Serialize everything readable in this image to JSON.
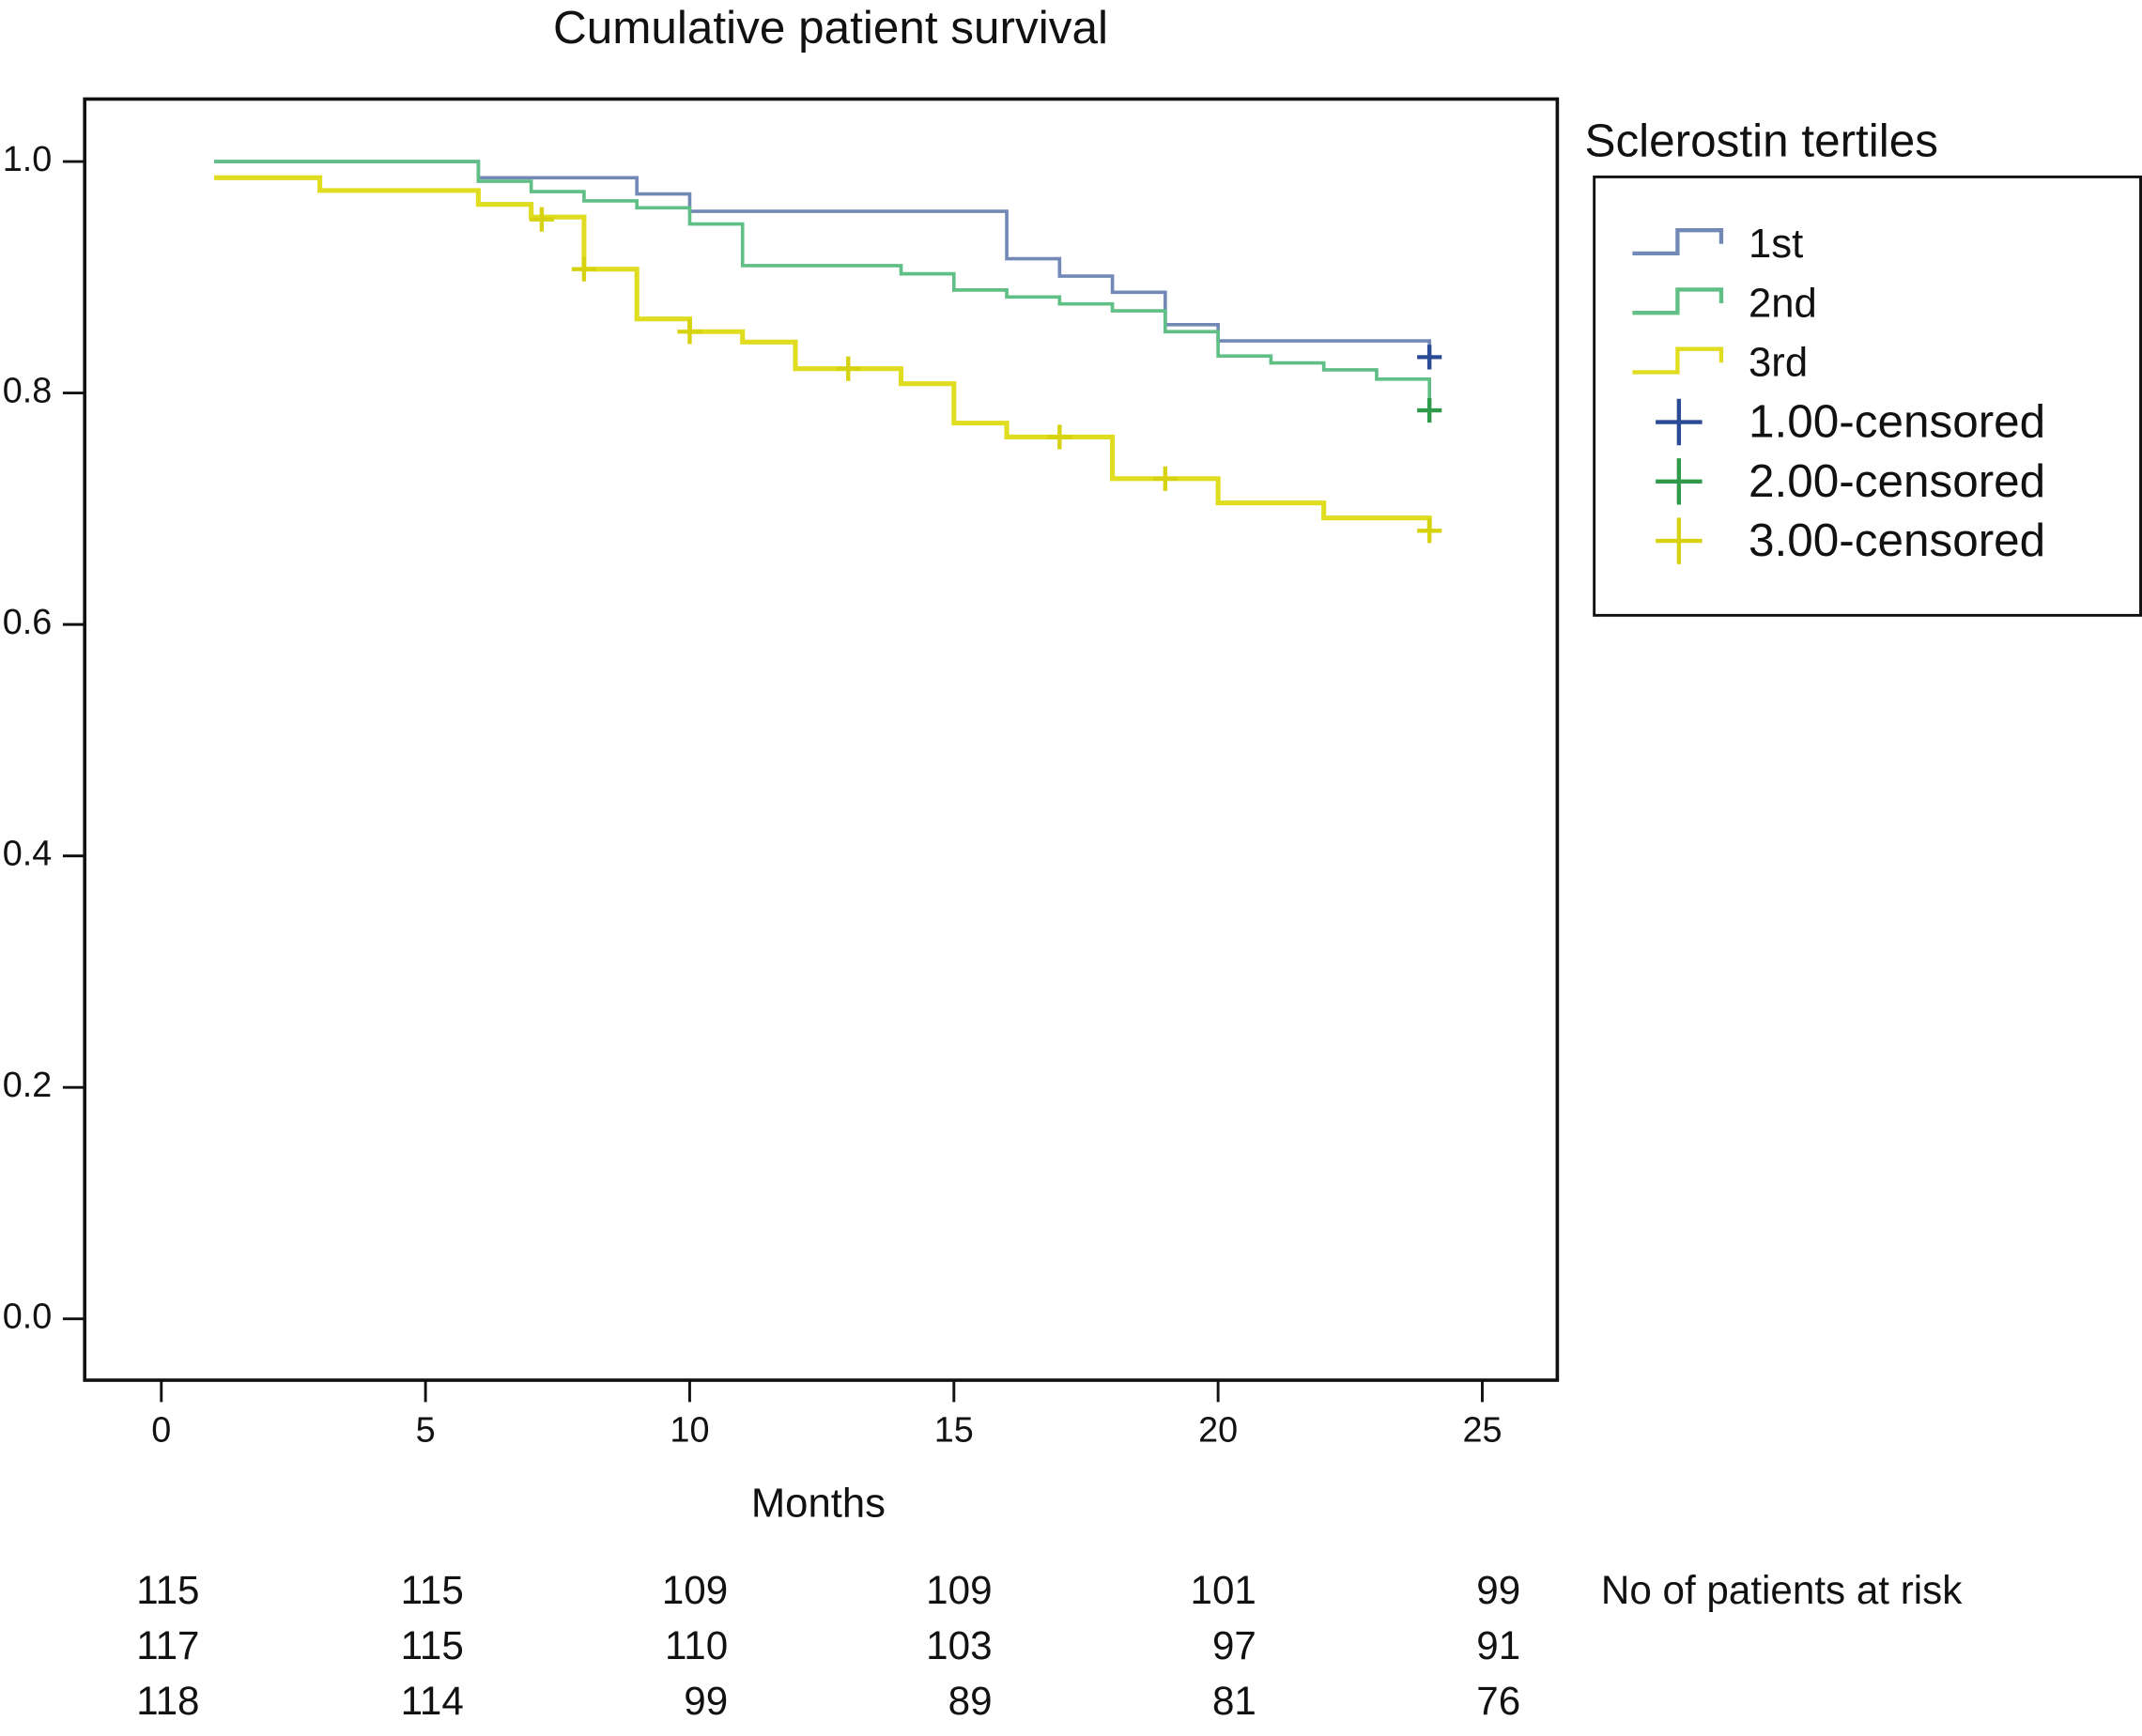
{
  "chart_data": {
    "type": "step",
    "title": "Cumulative patient survival",
    "x_label": "Months",
    "legend_title": "Sclerostin tertiles",
    "legend_position": "right",
    "xlim": [
      -1.45,
      26.42
    ],
    "ylim": [
      -0.053,
      1.054
    ],
    "xticks": [
      0,
      5,
      10,
      15,
      20,
      25
    ],
    "yticks": [
      {
        "value": 0,
        "label": "0.0"
      },
      0.2,
      0.4,
      0.6,
      0.8,
      {
        "value": 1,
        "label": "1.0"
      }
    ],
    "series": [
      {
        "name": "1st",
        "color": "#7289b5",
        "style": "step",
        "x": [
          1,
          6,
          9,
          10,
          16,
          17,
          18,
          19,
          20,
          24,
          24
        ],
        "values": [
          1.0,
          0.986,
          0.972,
          0.957,
          0.916,
          0.901,
          0.887,
          0.859,
          0.845,
          0.845,
          0.831
        ]
      },
      {
        "name": "2nd",
        "color": "#5fbf84",
        "style": "step",
        "x": [
          1,
          6,
          7,
          8,
          9,
          10,
          11,
          14,
          15,
          16,
          17,
          18,
          19,
          20,
          21,
          22,
          23,
          24
        ],
        "values": [
          1.0,
          0.983,
          0.974,
          0.966,
          0.96,
          0.946,
          0.91,
          0.903,
          0.889,
          0.883,
          0.877,
          0.871,
          0.853,
          0.832,
          0.826,
          0.82,
          0.812,
          0.785
        ]
      },
      {
        "name": "3rd",
        "color": "#e0dc1f",
        "style": "step",
        "x": [
          1,
          3,
          6,
          7,
          8,
          9,
          10,
          11,
          12,
          14,
          15,
          16,
          18,
          20,
          22,
          24
        ],
        "values": [
          0.986,
          0.975,
          0.963,
          0.952,
          0.907,
          0.864,
          0.853,
          0.844,
          0.821,
          0.808,
          0.774,
          0.762,
          0.726,
          0.705,
          0.692,
          0.681
        ]
      },
      {
        "name": "1.00-censored",
        "color": "#2a4a96",
        "style": "plus",
        "x": [
          24
        ],
        "values": [
          0.831
        ]
      },
      {
        "name": "2.00-censored",
        "color": "#2f9a4a",
        "style": "plus",
        "x": [
          24
        ],
        "values": [
          0.785
        ]
      },
      {
        "name": "3.00-censored",
        "color": "#d6d20f",
        "style": "plus",
        "x": [
          7.2,
          8,
          10,
          13,
          17,
          19,
          24
        ],
        "values": [
          0.95,
          0.907,
          0.853,
          0.821,
          0.762,
          0.726,
          0.681
        ]
      }
    ],
    "risk_table": {
      "title": "No of patients at risk",
      "rows": [
        [
          115,
          115,
          109,
          109,
          101,
          99
        ],
        [
          117,
          115,
          110,
          103,
          97,
          91
        ],
        [
          118,
          114,
          99,
          89,
          81,
          76
        ]
      ]
    }
  }
}
